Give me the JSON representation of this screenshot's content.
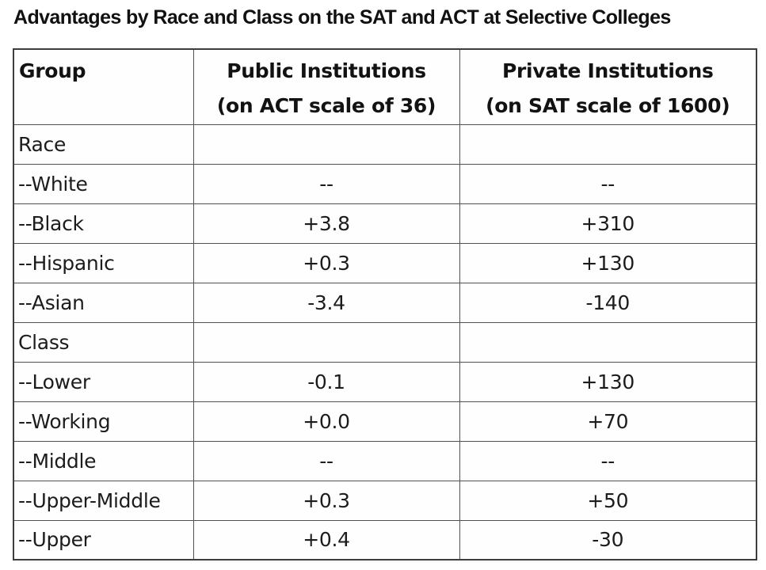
{
  "title": "Advantages by Race and Class on the SAT and ACT at Selective Colleges",
  "colors": {
    "background": "#ffffff",
    "text": "#1c1c1c",
    "border": "#525252",
    "outer_border": "#3d3d3d"
  },
  "chart_data": {
    "type": "table",
    "title": "Advantages by Race and Class on the SAT and ACT at Selective Colleges",
    "columns": [
      {
        "label": "Group",
        "sub": ""
      },
      {
        "label": "Public Institutions",
        "sub": "(on ACT scale of 36)"
      },
      {
        "label": "Private Institutions",
        "sub": "(on SAT scale of 1600)"
      }
    ],
    "rows": [
      {
        "group": "Race",
        "public": "",
        "private": ""
      },
      {
        "group": "--White",
        "public": "--",
        "private": "--"
      },
      {
        "group": "--Black",
        "public": "+3.8",
        "private": "+310"
      },
      {
        "group": "--Hispanic",
        "public": "+0.3",
        "private": "+130"
      },
      {
        "group": "--Asian",
        "public": "-3.4",
        "private": "-140"
      },
      {
        "group": "Class",
        "public": "",
        "private": ""
      },
      {
        "group": "--Lower",
        "public": "-0.1",
        "private": "+130"
      },
      {
        "group": "--Working",
        "public": "+0.0",
        "private": "+70"
      },
      {
        "group": "--Middle",
        "public": "--",
        "private": "--"
      },
      {
        "group": "--Upper-Middle",
        "public": "+0.3",
        "private": "+50"
      },
      {
        "group": "--Upper",
        "public": "+0.4",
        "private": "-30"
      }
    ]
  }
}
